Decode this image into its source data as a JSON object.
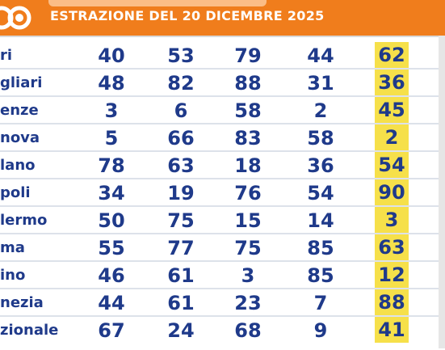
{
  "header": {
    "title": "ESTRAZIONE DEL 20 DICEMBRE 2025",
    "colors": {
      "header_bg": "#f07d1c",
      "number_text": "#1f3a8a",
      "highlight": "#f6e04a"
    }
  },
  "rows": [
    {
      "city": "ri",
      "numbers": [
        "40",
        "53",
        "79",
        "44"
      ],
      "last": "62"
    },
    {
      "city": "gliari",
      "numbers": [
        "48",
        "82",
        "88",
        "31"
      ],
      "last": "36"
    },
    {
      "city": "enze",
      "numbers": [
        "3",
        "6",
        "58",
        "2"
      ],
      "last": "45"
    },
    {
      "city": "nova",
      "numbers": [
        "5",
        "66",
        "83",
        "58"
      ],
      "last": "2"
    },
    {
      "city": "lano",
      "numbers": [
        "78",
        "63",
        "18",
        "36"
      ],
      "last": "54"
    },
    {
      "city": "poli",
      "numbers": [
        "34",
        "19",
        "76",
        "54"
      ],
      "last": "90"
    },
    {
      "city": "lermo",
      "numbers": [
        "50",
        "75",
        "15",
        "14"
      ],
      "last": "3"
    },
    {
      "city": "ma",
      "numbers": [
        "55",
        "77",
        "75",
        "85"
      ],
      "last": "63"
    },
    {
      "city": "ino",
      "numbers": [
        "46",
        "61",
        "3",
        "85"
      ],
      "last": "12"
    },
    {
      "city": "nezia",
      "numbers": [
        "44",
        "61",
        "23",
        "7"
      ],
      "last": "88"
    },
    {
      "city": "zionale",
      "numbers": [
        "67",
        "24",
        "68",
        "9"
      ],
      "last": "41"
    }
  ]
}
